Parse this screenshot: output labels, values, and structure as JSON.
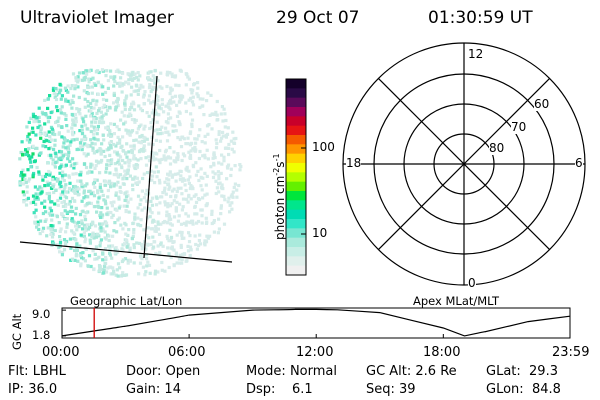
{
  "header": {
    "title": "Ultraviolet Imager",
    "date": "29 Oct 07",
    "time": "01:30:59 UT"
  },
  "colorbar": {
    "label": "photon cm",
    "exp1": "-2",
    "mid": "s",
    "exp2": "-1",
    "ticks": [
      "100",
      "10"
    ],
    "levels": [
      {
        "level": 1.0,
        "color": "#14002a"
      },
      {
        "level": 0.95,
        "color": "#2a0a46"
      },
      {
        "level": 0.9,
        "color": "#5a0a5a"
      },
      {
        "level": 0.85,
        "color": "#a0005a"
      },
      {
        "level": 0.8,
        "color": "#c8002a"
      },
      {
        "level": 0.75,
        "color": "#e61414"
      },
      {
        "level": 0.7,
        "color": "#f55a00"
      },
      {
        "level": 0.65,
        "color": "#ff9600"
      },
      {
        "level": 0.6,
        "color": "#ffd200"
      },
      {
        "level": 0.55,
        "color": "#f0ff00"
      },
      {
        "level": 0.5,
        "color": "#b4ff00"
      },
      {
        "level": 0.45,
        "color": "#64f000"
      },
      {
        "level": 0.4,
        "color": "#00e63c"
      },
      {
        "level": 0.35,
        "color": "#00e68c"
      },
      {
        "level": 0.3,
        "color": "#00dcb4"
      },
      {
        "level": 0.25,
        "color": "#32e6c8"
      },
      {
        "level": 0.2,
        "color": "#78e6d2"
      },
      {
        "level": 0.15,
        "color": "#aaeadc"
      },
      {
        "level": 0.1,
        "color": "#c8eee6"
      },
      {
        "level": 0.05,
        "color": "#e0f0ec"
      },
      {
        "level": 0.0,
        "color": "#f0f0f0"
      }
    ]
  },
  "polar": {
    "labels": {
      "top": "12",
      "bottom": "0",
      "left": "18",
      "right": "6"
    },
    "rings": [
      "60",
      "70",
      "80"
    ]
  },
  "timeline": {
    "left_title": "Geographic Lat/Lon",
    "right_title": "Apex MLat/MLT",
    "y_title": "GC Alt",
    "y_ticks": [
      "9.0",
      "1.8"
    ],
    "x_ticks": [
      "00:00",
      "06:00",
      "12:00",
      "18:00",
      "23:59"
    ],
    "altitude_profile": {
      "x_hours": [
        0,
        3,
        6,
        9,
        11,
        12,
        13,
        15,
        18,
        19,
        20,
        22,
        23.98
      ],
      "alt_re": [
        1.8,
        4.5,
        7.6,
        9.0,
        9.2,
        9.2,
        9.1,
        8.3,
        4.0,
        1.8,
        3.0,
        5.8,
        7.3
      ]
    },
    "current_time_hours": 1.52
  },
  "footer": {
    "row1": [
      {
        "label": "Flt:",
        "value": "LBHL"
      },
      {
        "label": "Door:",
        "value": "Open"
      },
      {
        "label": "Mode:",
        "value": "Normal"
      },
      {
        "label": "GC Alt:",
        "value": "2.6 Re"
      },
      {
        "label": "GLat:",
        "value": "29.3"
      }
    ],
    "row2": [
      {
        "label": "IP:",
        "value": "36.0"
      },
      {
        "label": "Gain:",
        "value": "14"
      },
      {
        "label": "Dsp:",
        "value": "6.1"
      },
      {
        "label": "Seq:",
        "value": "39"
      },
      {
        "label": "GLon:",
        "value": "84.8"
      }
    ]
  }
}
